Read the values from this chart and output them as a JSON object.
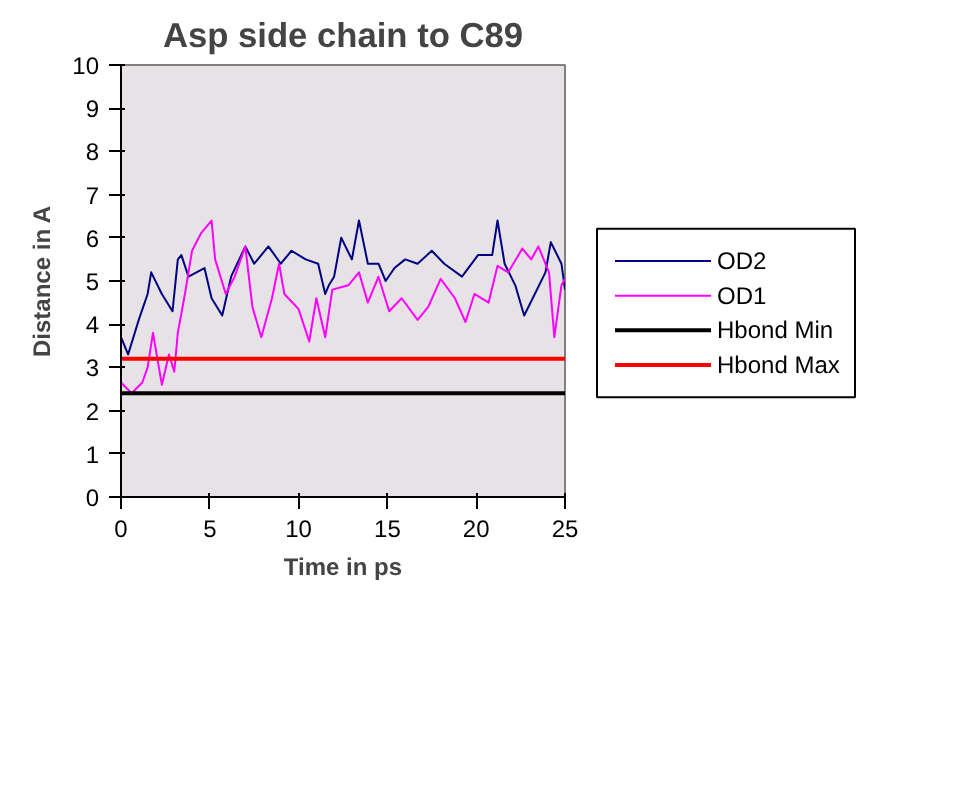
{
  "chart_data": {
    "type": "line",
    "title": "Asp side chain to C89",
    "xlabel": "Time in ps",
    "ylabel": "Distance in A",
    "xlim": [
      0,
      25
    ],
    "ylim": [
      0,
      10
    ],
    "xticks": [
      0,
      5,
      10,
      15,
      20,
      25
    ],
    "yticks": [
      0,
      1,
      2,
      3,
      4,
      5,
      6,
      7,
      8,
      9,
      10
    ],
    "grid": false,
    "legend": "right",
    "marker": "none",
    "line_style": "solid",
    "series": [
      {
        "name": "OD2",
        "color": "#000080",
        "x": [
          0,
          0.4,
          1.0,
          1.5,
          1.7,
          2.3,
          2.9,
          3.2,
          3.4,
          3.8,
          4.7,
          5.1,
          5.7,
          6.2,
          7.0,
          7.5,
          8.3,
          9.0,
          9.6,
          10.4,
          11.1,
          11.5,
          11.7,
          12.0,
          12.4,
          13.0,
          13.4,
          13.9,
          14.5,
          14.9,
          15.4,
          16.0,
          16.7,
          17.5,
          18.2,
          19.2,
          20.1,
          20.9,
          21.2,
          21.6,
          22.2,
          22.7,
          23.3,
          23.9,
          24.2,
          24.8,
          25
        ],
        "values": [
          3.7,
          3.3,
          4.1,
          4.7,
          5.2,
          4.7,
          4.3,
          5.5,
          5.6,
          5.1,
          5.3,
          4.6,
          4.2,
          5.1,
          5.8,
          5.4,
          5.8,
          5.4,
          5.7,
          5.5,
          5.4,
          4.7,
          4.9,
          5.1,
          6.0,
          5.5,
          6.4,
          5.4,
          5.4,
          5.0,
          5.3,
          5.5,
          5.4,
          5.7,
          5.4,
          5.1,
          5.6,
          5.6,
          6.4,
          5.4,
          4.9,
          4.2,
          4.7,
          5.2,
          5.9,
          5.4,
          4.8
        ]
      },
      {
        "name": "OD1",
        "color": "#ff00ff",
        "x": [
          0,
          0.6,
          1.2,
          1.5,
          1.8,
          2.3,
          2.7,
          3.0,
          3.2,
          3.6,
          4.0,
          4.5,
          5.1,
          5.3,
          5.9,
          6.4,
          7.0,
          7.4,
          7.9,
          8.5,
          8.9,
          9.2,
          10.0,
          10.6,
          11.0,
          11.5,
          11.9,
          12.8,
          13.4,
          13.9,
          14.5,
          15.1,
          15.8,
          16.7,
          17.3,
          18.0,
          18.8,
          19.4,
          19.9,
          20.7,
          21.2,
          21.8,
          22.6,
          23.1,
          23.5,
          24.1,
          24.4,
          24.8,
          25
        ],
        "values": [
          2.65,
          2.4,
          2.65,
          3.0,
          3.8,
          2.6,
          3.3,
          2.9,
          3.8,
          4.7,
          5.7,
          6.1,
          6.4,
          5.5,
          4.7,
          5.1,
          5.8,
          4.4,
          3.7,
          4.6,
          5.4,
          4.7,
          4.35,
          3.6,
          4.6,
          3.7,
          4.8,
          4.9,
          5.2,
          4.5,
          5.1,
          4.3,
          4.6,
          4.1,
          4.4,
          5.05,
          4.6,
          4.05,
          4.7,
          4.5,
          5.35,
          5.2,
          5.75,
          5.5,
          5.8,
          5.2,
          3.7,
          4.9,
          5.05
        ]
      },
      {
        "name": "Hbond Min",
        "color": "#000000",
        "x": [
          0,
          25
        ],
        "values": [
          2.4,
          2.4
        ]
      },
      {
        "name": "Hbond Max",
        "color": "#ff0000",
        "x": [
          0,
          25
        ],
        "values": [
          3.2,
          3.2
        ]
      }
    ]
  }
}
